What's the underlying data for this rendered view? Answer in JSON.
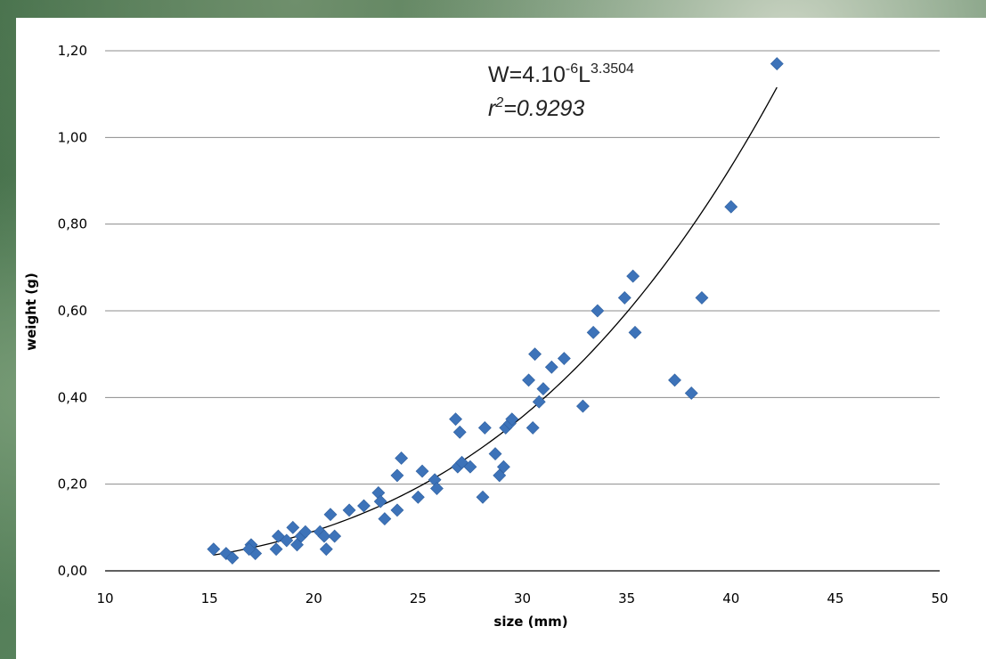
{
  "chart_data": {
    "type": "scatter",
    "xlabel": "size (mm)",
    "ylabel": "weight (g)",
    "xlim": [
      10,
      50
    ],
    "ylim": [
      0,
      1.2
    ],
    "x_ticks": [
      "10",
      "15",
      "20",
      "25",
      "30",
      "35",
      "40",
      "45",
      "50"
    ],
    "y_ticks": [
      "0,00",
      "0,20",
      "0,40",
      "0,60",
      "0,80",
      "1,00",
      "1,20"
    ],
    "grid": "horizontal",
    "marker_color": "#3d73b9",
    "points": [
      [
        15.2,
        0.05
      ],
      [
        15.8,
        0.04
      ],
      [
        16.1,
        0.03
      ],
      [
        17.0,
        0.06
      ],
      [
        17.2,
        0.04
      ],
      [
        16.9,
        0.05
      ],
      [
        18.2,
        0.05
      ],
      [
        18.3,
        0.08
      ],
      [
        18.7,
        0.07
      ],
      [
        19.0,
        0.1
      ],
      [
        19.2,
        0.06
      ],
      [
        19.4,
        0.08
      ],
      [
        19.6,
        0.09
      ],
      [
        20.3,
        0.09
      ],
      [
        20.5,
        0.08
      ],
      [
        20.6,
        0.05
      ],
      [
        20.8,
        0.13
      ],
      [
        21.0,
        0.08
      ],
      [
        21.7,
        0.14
      ],
      [
        22.4,
        0.15
      ],
      [
        23.1,
        0.18
      ],
      [
        23.2,
        0.16
      ],
      [
        23.4,
        0.12
      ],
      [
        24.0,
        0.14
      ],
      [
        24.0,
        0.22
      ],
      [
        24.2,
        0.26
      ],
      [
        25.0,
        0.17
      ],
      [
        25.2,
        0.23
      ],
      [
        25.8,
        0.21
      ],
      [
        25.9,
        0.19
      ],
      [
        26.8,
        0.35
      ],
      [
        26.9,
        0.24
      ],
      [
        27.0,
        0.32
      ],
      [
        27.1,
        0.25
      ],
      [
        27.5,
        0.24
      ],
      [
        28.1,
        0.17
      ],
      [
        28.2,
        0.33
      ],
      [
        28.7,
        0.27
      ],
      [
        28.9,
        0.22
      ],
      [
        29.1,
        0.24
      ],
      [
        29.2,
        0.33
      ],
      [
        29.4,
        0.34
      ],
      [
        29.5,
        0.35
      ],
      [
        30.3,
        0.44
      ],
      [
        30.5,
        0.33
      ],
      [
        30.6,
        0.5
      ],
      [
        30.8,
        0.39
      ],
      [
        31.0,
        0.42
      ],
      [
        31.4,
        0.47
      ],
      [
        32.0,
        0.49
      ],
      [
        32.9,
        0.38
      ],
      [
        33.4,
        0.55
      ],
      [
        33.6,
        0.6
      ],
      [
        34.9,
        0.63
      ],
      [
        35.3,
        0.68
      ],
      [
        35.4,
        0.55
      ],
      [
        37.3,
        0.44
      ],
      [
        38.1,
        0.41
      ],
      [
        38.6,
        0.63
      ],
      [
        40.0,
        0.84
      ],
      [
        42.2,
        1.17
      ]
    ],
    "trendline": {
      "type": "power",
      "coefficient": 4e-06,
      "exponent": 3.3504,
      "x_range": [
        15.2,
        42.2
      ],
      "color": "#000000"
    },
    "annotations": {
      "equation_base": "W=4.10",
      "equation_exp1": "-6",
      "equation_mid": "L",
      "equation_exp2": "3.3504",
      "r2_base": "r",
      "r2_sup": "2",
      "r2_value": "=0.9293"
    }
  }
}
